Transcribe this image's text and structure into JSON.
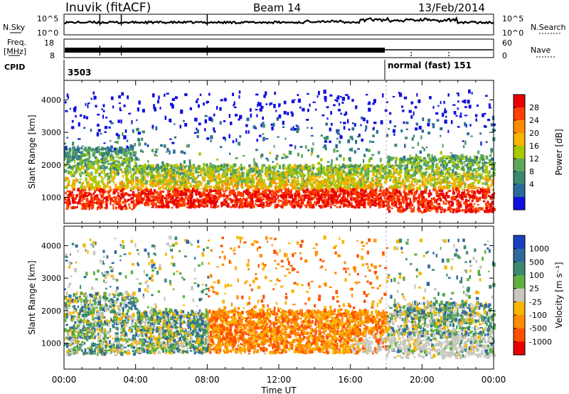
{
  "header": {
    "station": "Inuvik (fitACF)",
    "beam": "Beam 14",
    "date": "13/Feb/2014"
  },
  "labels": {
    "nsky": "N.Sky",
    "nsearch": "N.Search",
    "freq_line1": "Freq.",
    "freq_line2": "[MHz]",
    "nave": "Nave",
    "cpid": "CPID"
  },
  "noise_panel": {
    "left_ticks": [
      "10^5",
      "10^0"
    ],
    "right_ticks": [
      "10^5",
      "10^0"
    ]
  },
  "freq_panel": {
    "left_ticks": [
      "18",
      "8"
    ],
    "right_ticks": [
      "60",
      "0"
    ]
  },
  "cpid_panel": {
    "cpid1": "3503",
    "cpid2": "normal (fast) 151",
    "switch_hour": 18
  },
  "chart_data": [
    {
      "type": "heatmap",
      "name": "power",
      "ylabel": "Slant Range [km]",
      "ylim": [
        200,
        4600
      ],
      "yticks": [
        1000,
        2000,
        3000,
        4000
      ],
      "xlim": [
        0,
        24
      ],
      "colorbar": {
        "label": "Power [dB]",
        "ticks": [
          "28",
          "24",
          "20",
          "16",
          "12",
          "8",
          "4"
        ],
        "colors": [
          "#e80000",
          "#ff4000",
          "#ff8c00",
          "#f7b500",
          "#a8c800",
          "#5ea85a",
          "#3a8a70",
          "#2a6a9a",
          "#1010e0"
        ]
      }
    },
    {
      "type": "heatmap",
      "name": "velocity",
      "ylabel": "Slant Range [km]",
      "ylim": [
        200,
        4600
      ],
      "yticks": [
        1000,
        2000,
        3000,
        4000
      ],
      "xlim": [
        0,
        24
      ],
      "colorbar": {
        "label": "Velocity [m s⁻¹]",
        "ticks": [
          "1000",
          "500",
          "100",
          "25",
          "-25",
          "-100",
          "-500",
          "-1000"
        ],
        "colors": [
          "#1840c0",
          "#2e6aa0",
          "#3a8a70",
          "#60b040",
          "#c8c8c0",
          "#f7b500",
          "#ff8c00",
          "#ff5000",
          "#e80000"
        ]
      }
    }
  ],
  "xaxis": {
    "label": "Time UT",
    "ticks": [
      "00:00",
      "04:00",
      "08:00",
      "12:00",
      "16:00",
      "20:00",
      "00:00"
    ]
  }
}
